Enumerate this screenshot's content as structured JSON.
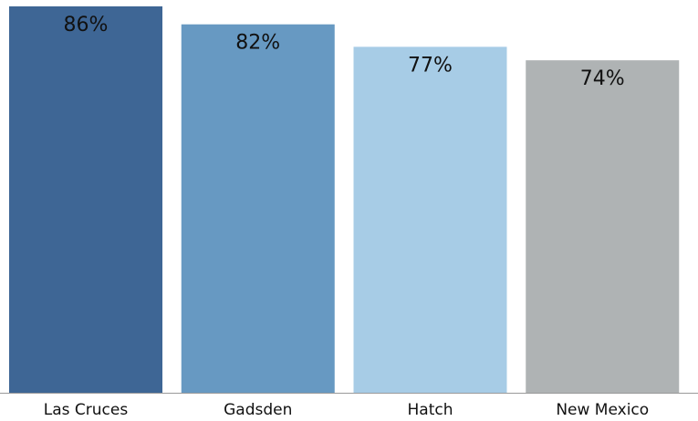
{
  "chart_data": {
    "type": "bar",
    "categories": [
      "Las Cruces",
      "Gadsden",
      "Hatch",
      "New Mexico"
    ],
    "values": [
      86,
      82,
      77,
      74
    ],
    "value_labels": [
      "86%",
      "82%",
      "77%",
      "74%"
    ],
    "colors": [
      "#3e6695",
      "#6799c2",
      "#a7cce6",
      "#afb3b4"
    ],
    "title": "",
    "xlabel": "",
    "ylabel": "",
    "ylim": [
      0,
      86
    ],
    "grid": false,
    "legend": "none"
  }
}
